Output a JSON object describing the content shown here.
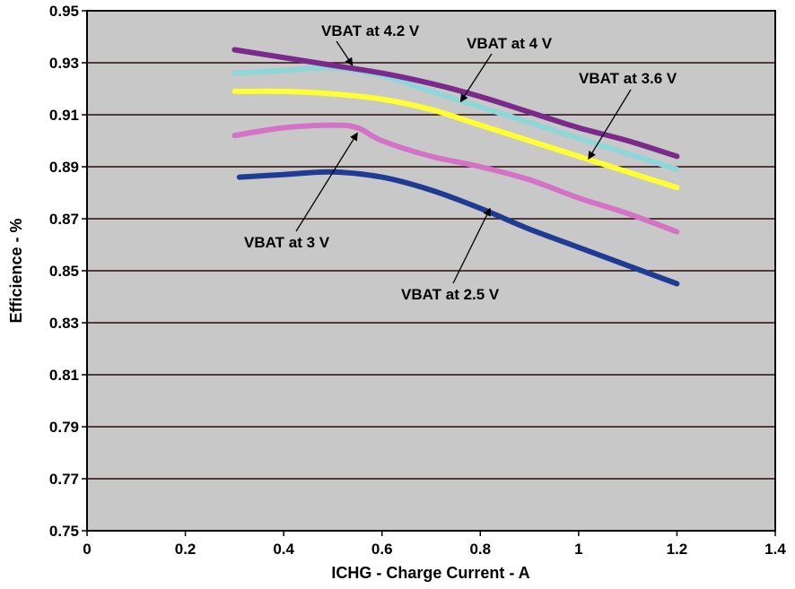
{
  "chart_data": {
    "type": "line",
    "title": "",
    "xlabel": "ICHG - Charge Current - A",
    "ylabel": "Efficience - %",
    "xlim": [
      0,
      1.4
    ],
    "ylim": [
      0.75,
      0.95
    ],
    "xticks": [
      "0",
      "0.2",
      "0.4",
      "0.6",
      "0.8",
      "1",
      "1.2",
      "1.4"
    ],
    "yticks": [
      "0.75",
      "0.77",
      "0.79",
      "0.81",
      "0.83",
      "0.85",
      "0.87",
      "0.89",
      "0.91",
      "0.93",
      "0.95"
    ],
    "grid": "horizontal",
    "plot_background": "#c8c8c8",
    "series": [
      {
        "name": "VBAT at 4.2 V",
        "color": "#7b2a8c",
        "x": [
          0.3,
          0.4,
          0.5,
          0.6,
          0.7,
          0.8,
          0.9,
          1.0,
          1.1,
          1.2
        ],
        "y": [
          0.935,
          0.932,
          0.929,
          0.926,
          0.922,
          0.917,
          0.911,
          0.905,
          0.9,
          0.894
        ]
      },
      {
        "name": "VBAT at 4 V",
        "color": "#8fd6d8",
        "x": [
          0.3,
          0.4,
          0.5,
          0.6,
          0.7,
          0.8,
          0.9,
          1.0,
          1.1,
          1.2
        ],
        "y": [
          0.926,
          0.927,
          0.928,
          0.925,
          0.919,
          0.913,
          0.907,
          0.901,
          0.895,
          0.889
        ]
      },
      {
        "name": "VBAT at 3.6 V",
        "color": "#ffff33",
        "x": [
          0.3,
          0.4,
          0.5,
          0.6,
          0.7,
          0.8,
          0.9,
          1.0,
          1.1,
          1.2
        ],
        "y": [
          0.919,
          0.919,
          0.918,
          0.916,
          0.912,
          0.906,
          0.9,
          0.894,
          0.888,
          0.882
        ]
      },
      {
        "name": "VBAT at 3 V",
        "color": "#d472c6",
        "x": [
          0.3,
          0.4,
          0.5,
          0.55,
          0.6,
          0.7,
          0.8,
          0.9,
          1.0,
          1.1,
          1.2
        ],
        "y": [
          0.902,
          0.905,
          0.906,
          0.905,
          0.9,
          0.894,
          0.89,
          0.885,
          0.878,
          0.872,
          0.865
        ]
      },
      {
        "name": "VBAT at 2.5 V",
        "color": "#1f3b93",
        "x": [
          0.31,
          0.4,
          0.5,
          0.6,
          0.7,
          0.8,
          0.9,
          1.0,
          1.1,
          1.2
        ],
        "y": [
          0.886,
          0.887,
          0.888,
          0.886,
          0.881,
          0.874,
          0.866,
          0.859,
          0.852,
          0.845
        ]
      }
    ],
    "annotations": [
      {
        "text": "VBAT at 4.2 V",
        "arrow_to": [
          0.54,
          0.929
        ]
      },
      {
        "text": "VBAT at 4 V",
        "arrow_to": [
          0.76,
          0.915
        ]
      },
      {
        "text": "VBAT at 3.6 V",
        "arrow_to": [
          1.02,
          0.893
        ]
      },
      {
        "text": "VBAT at 3 V",
        "arrow_to": [
          0.55,
          0.903
        ]
      },
      {
        "text": "VBAT at 2.5 V",
        "arrow_to": [
          0.82,
          0.874
        ]
      }
    ]
  }
}
